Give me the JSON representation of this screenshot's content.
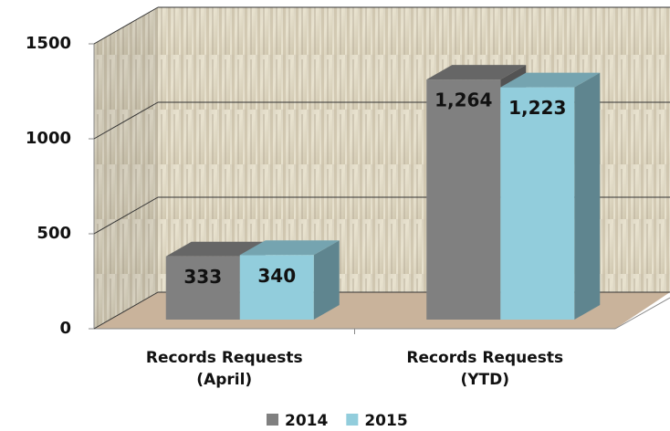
{
  "chart_data": {
    "type": "bar3d",
    "categories": [
      "Records Requests (April)",
      "Records Requests (YTD)"
    ],
    "series": [
      {
        "name": "2014",
        "color": "#808080",
        "values": [
          333,
          1264
        ],
        "value_labels": [
          "333",
          "1,264"
        ]
      },
      {
        "name": "2015",
        "color": "#92cddc",
        "values": [
          340,
          1223
        ],
        "value_labels": [
          "340",
          "1,223"
        ]
      }
    ],
    "ylim": [
      0,
      1500
    ],
    "yticks": [
      0,
      500,
      1000,
      1500
    ],
    "grid": true,
    "legend": "bottom"
  }
}
